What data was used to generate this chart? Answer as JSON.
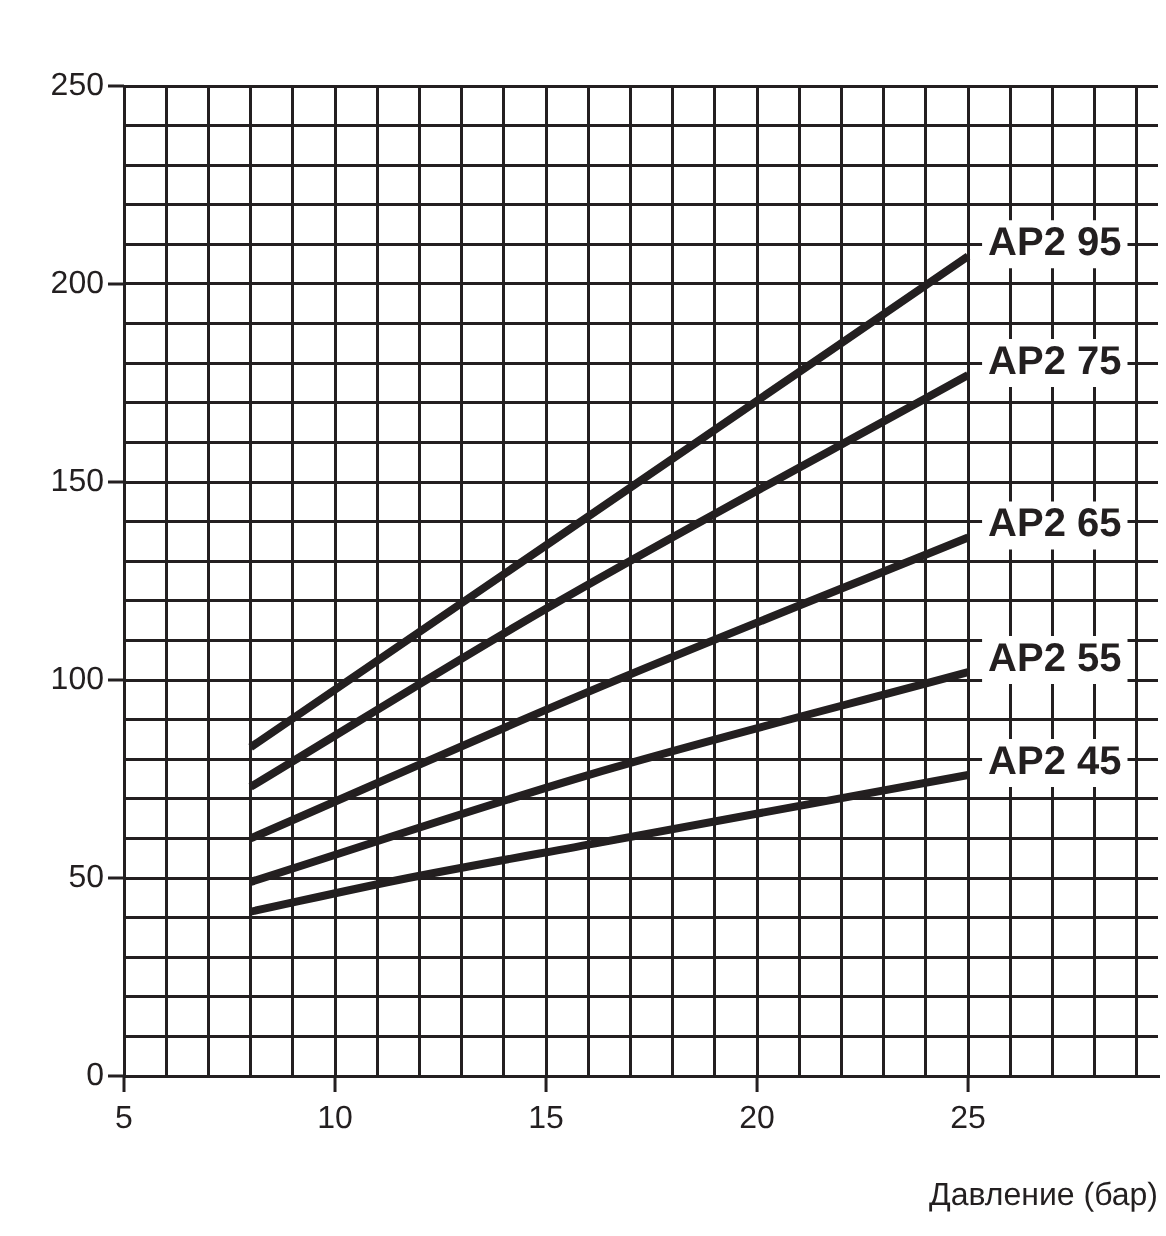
{
  "chart_data": {
    "type": "line",
    "xlabel": "Давление (бар)",
    "xlim": [
      5,
      29.5
    ],
    "ylim": [
      0,
      250
    ],
    "xticks": [
      5,
      {
        "value": 6,
        "label": null
      },
      {
        "value": 7,
        "label": null
      },
      {
        "value": 8,
        "label": null
      },
      {
        "value": 9,
        "label": null
      },
      10,
      {
        "value": 11,
        "label": null
      },
      {
        "value": 12,
        "label": null
      },
      {
        "value": 13,
        "label": null
      },
      {
        "value": 14,
        "label": null
      },
      15,
      {
        "value": 16,
        "label": null
      },
      {
        "value": 17,
        "label": null
      },
      {
        "value": 18,
        "label": null
      },
      {
        "value": 19,
        "label": null
      },
      20,
      {
        "value": 21,
        "label": null
      },
      {
        "value": 22,
        "label": null
      },
      {
        "value": 23,
        "label": null
      },
      {
        "value": 24,
        "label": null
      },
      25,
      {
        "value": 26,
        "label": null
      },
      {
        "value": 27,
        "label": null
      },
      {
        "value": 28,
        "label": null
      },
      {
        "value": 29,
        "label": null
      }
    ],
    "yticks": [
      0,
      {
        "value": 10,
        "label": null
      },
      {
        "value": 20,
        "label": null
      },
      {
        "value": 30,
        "label": null
      },
      {
        "value": 40,
        "label": null
      },
      50,
      {
        "value": 60,
        "label": null
      },
      {
        "value": 70,
        "label": null
      },
      {
        "value": 80,
        "label": null
      },
      {
        "value": 90,
        "label": null
      },
      100,
      {
        "value": 110,
        "label": null
      },
      {
        "value": 120,
        "label": null
      },
      {
        "value": 130,
        "label": null
      },
      {
        "value": 140,
        "label": null
      },
      150,
      {
        "value": 160,
        "label": null
      },
      {
        "value": 170,
        "label": null
      },
      {
        "value": 180,
        "label": null
      },
      {
        "value": 190,
        "label": null
      },
      200,
      {
        "value": 210,
        "label": null
      },
      {
        "value": 220,
        "label": null
      },
      {
        "value": 230,
        "label": null
      },
      {
        "value": 240,
        "label": null
      },
      250
    ],
    "grid": true,
    "legend": false,
    "marker": "none",
    "line_style": "solid",
    "series": [
      {
        "name": "AP2 95",
        "color": "#231f20",
        "x": [
          8,
          15,
          25
        ],
        "values": [
          83,
          134,
          207
        ]
      },
      {
        "name": "AP2 75",
        "color": "#231f20",
        "x": [
          8,
          15,
          25
        ],
        "values": [
          73,
          118,
          177
        ]
      },
      {
        "name": "AP2 65",
        "color": "#231f20",
        "x": [
          8,
          16,
          25
        ],
        "values": [
          60,
          97,
          136
        ]
      },
      {
        "name": "AP2 55",
        "color": "#231f20",
        "x": [
          8,
          16,
          25
        ],
        "values": [
          49,
          76,
          102
        ]
      },
      {
        "name": "AP2 45",
        "color": "#231f20",
        "x": [
          8,
          11.5,
          16.3,
          25
        ],
        "values": [
          41.5,
          49.5,
          59,
          76
        ]
      }
    ]
  }
}
